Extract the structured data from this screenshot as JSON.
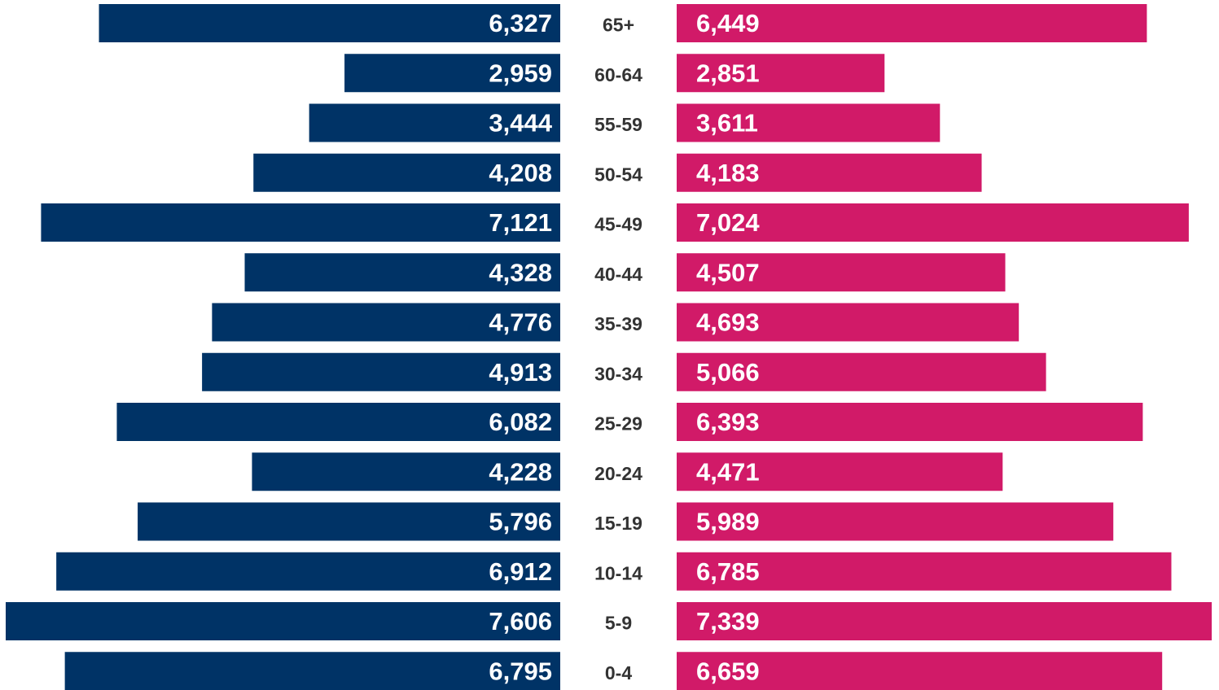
{
  "chart_data": {
    "type": "bar",
    "orientation": "horizontal",
    "layout": "population-pyramid",
    "title": "",
    "xlabel": "",
    "ylabel": "",
    "categories": [
      "65+",
      "60-64",
      "55-59",
      "50-54",
      "45-49",
      "40-44",
      "35-39",
      "30-34",
      "25-29",
      "20-24",
      "15-19",
      "10-14",
      "5-9",
      "0-4"
    ],
    "series": [
      {
        "side": "left",
        "color": "#003366",
        "values": [
          6327,
          2959,
          3444,
          4208,
          7121,
          4328,
          4776,
          4913,
          6082,
          4228,
          5796,
          6912,
          7606,
          6795
        ],
        "labels": [
          "6,327",
          "2,959",
          "3,444",
          "4,208",
          "7,121",
          "4,328",
          "4,776",
          "4,913",
          "6,082",
          "4,228",
          "5,796",
          "6,912",
          "7,606",
          "6,795"
        ]
      },
      {
        "side": "right",
        "color": "#D11A68",
        "values": [
          6449,
          2851,
          3611,
          4183,
          7024,
          4507,
          4693,
          5066,
          6393,
          4471,
          5989,
          6785,
          7339,
          6659
        ],
        "labels": [
          "6,449",
          "2,851",
          "3,611",
          "4,183",
          "7,024",
          "4,507",
          "4,693",
          "5,066",
          "6,393",
          "4,471",
          "5,989",
          "6,785",
          "7,339",
          "6,659"
        ]
      }
    ],
    "xlim": [
      0,
      7606
    ],
    "grid": false,
    "legend": "none",
    "data_labels": true
  }
}
